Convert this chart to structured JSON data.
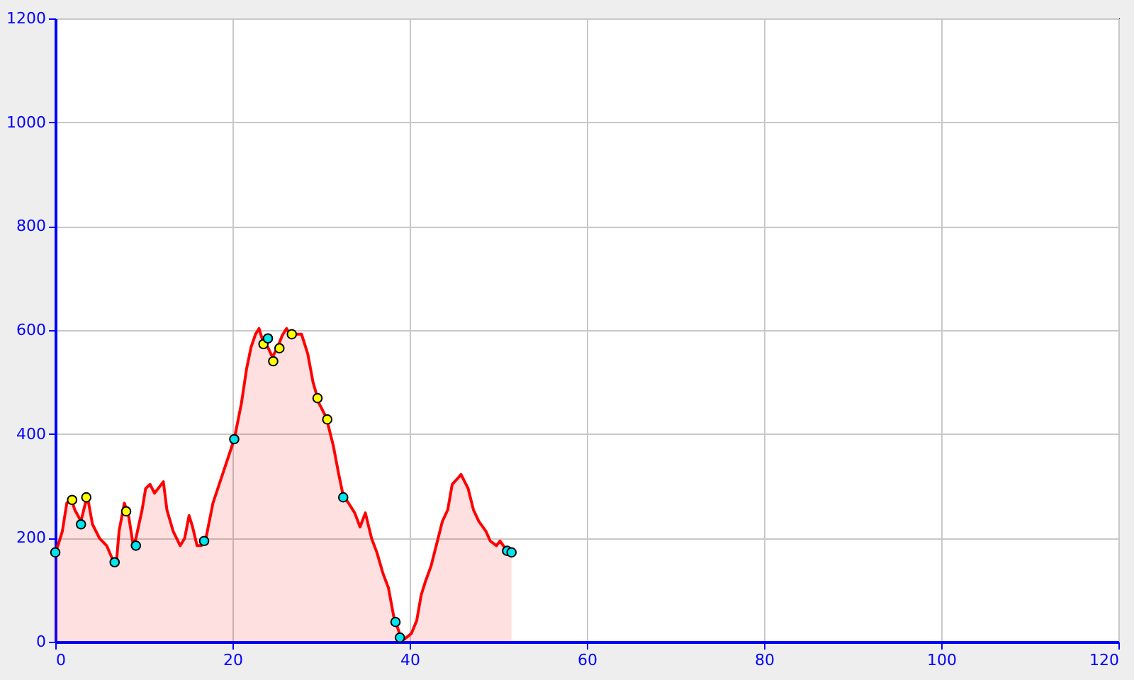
{
  "chart_data": {
    "type": "area",
    "xlim": [
      0,
      120
    ],
    "xticks": [
      0,
      20,
      40,
      60,
      80,
      100,
      120
    ],
    "ylim": [
      0,
      1200
    ],
    "yticks": [
      0,
      200,
      400,
      600,
      800,
      1000,
      1200
    ],
    "grid": true,
    "series": [
      {
        "color": "#ff0000",
        "x": [
          0,
          0.3,
          0.8,
          1.3,
          1.8,
          2.2,
          2.9,
          3.4,
          3.7,
          4.2,
          5,
          5.8,
          6.6,
          6.9,
          7.2,
          7.8,
          8.3,
          8.8,
          9.1,
          9.8,
          10.2,
          10.7,
          11.2,
          11.7,
          12.2,
          12.6,
          13.3,
          14.1,
          14.6,
          15.1,
          15.5,
          16,
          16.5,
          17,
          17.8,
          18.6,
          19.4,
          20.2,
          21,
          21.6,
          22.1,
          22.6,
          23,
          23.5,
          24,
          24.5,
          25.1,
          25.6,
          26.1,
          26.7,
          27.2,
          27.8,
          28.5,
          29.1,
          29.8,
          30.6,
          31.4,
          32,
          32.5,
          33.1,
          33.8,
          34.4,
          35,
          35.7,
          36.3,
          37,
          37.6,
          38.2,
          38.9,
          39.4,
          40.2,
          40.8,
          41.3,
          41.8,
          42.4,
          43,
          43.7,
          44.3,
          44.8,
          45.4,
          45.8,
          46.6,
          47.2,
          47.8,
          48.6,
          49.1,
          49.8,
          50.2,
          50.9,
          51.5
        ],
        "values": [
          172,
          185,
          213,
          267,
          275,
          254,
          232,
          267,
          273,
          226,
          199,
          185,
          153,
          153,
          213,
          267,
          240,
          185,
          199,
          254,
          295,
          303,
          286,
          297,
          308,
          254,
          213,
          185,
          199,
          243,
          221,
          185,
          185,
          199,
          267,
          308,
          349,
          390,
          458,
          526,
          567,
          592,
          603,
          575,
          567,
          548,
          567,
          589,
          603,
          586,
          592,
          592,
          554,
          499,
          458,
          431,
          376,
          322,
          281,
          267,
          248,
          221,
          248,
          199,
          172,
          131,
          104,
          49,
          14,
          5,
          16,
          41,
          90,
          117,
          145,
          185,
          232,
          254,
          303,
          314,
          322,
          295,
          254,
          232,
          213,
          194,
          185,
          194,
          177,
          172
        ]
      },
      {
        "type": "scatter",
        "color": "#ffff00",
        "marker": "circle",
        "x": [
          1.9,
          3.5,
          8,
          23.5,
          24.6,
          25.3,
          26.7,
          29.6,
          30.7
        ],
        "values": [
          273,
          278,
          251,
          573,
          540,
          565,
          592,
          469,
          428
        ]
      },
      {
        "type": "scatter",
        "color": "#00e5ee",
        "marker": "circle",
        "x": [
          0,
          2.9,
          6.7,
          9.1,
          16.8,
          20.2,
          24,
          32.5,
          38.4,
          38.9,
          51,
          51.5
        ],
        "values": [
          172,
          226,
          153,
          185,
          194,
          390,
          584,
          278,
          38,
          8,
          175,
          172
        ]
      }
    ]
  }
}
